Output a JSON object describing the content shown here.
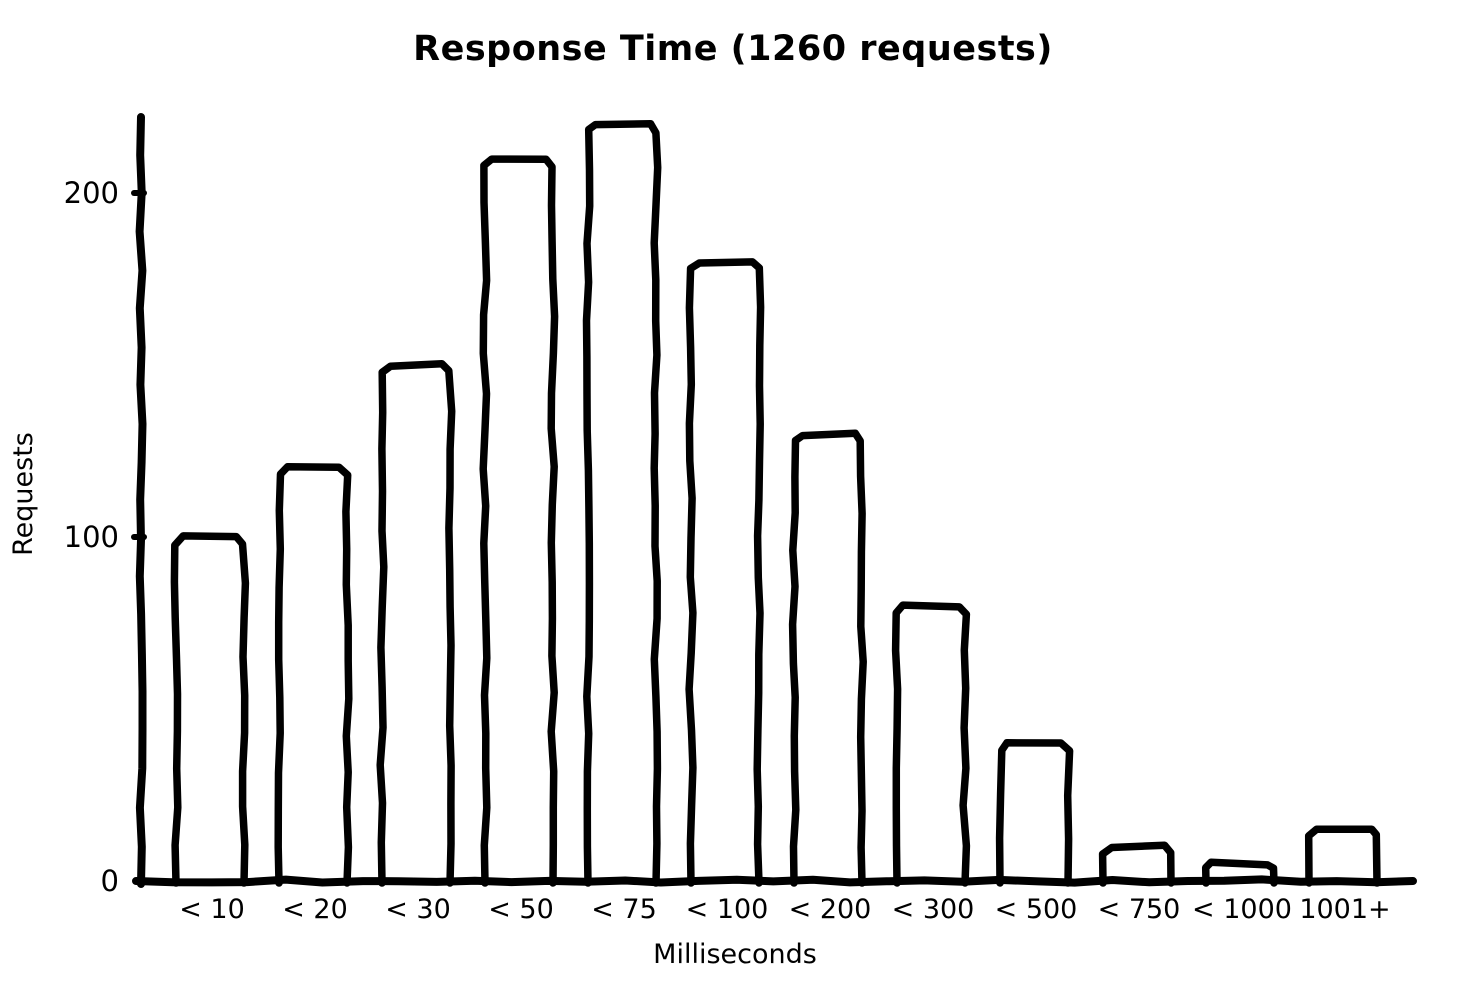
{
  "chart_data": {
    "type": "bar",
    "title": "Response Time (1260 requests)",
    "xlabel": "Milliseconds",
    "ylabel": "Requests",
    "categories": [
      "< 10",
      "< 20",
      "< 30",
      "< 50",
      "< 75",
      "< 100",
      "< 200",
      "< 300",
      "< 500",
      "< 750",
      "< 1000",
      "1001+"
    ],
    "values": [
      100,
      120,
      150,
      210,
      220,
      180,
      130,
      80,
      40,
      10,
      5,
      15
    ],
    "total_requests": 1260,
    "yticks": [
      0,
      100,
      200
    ],
    "ylim": [
      0,
      222
    ],
    "grid": false,
    "legend": "none",
    "style": {
      "stroke_color": "#000000",
      "bar_fill": "#ffffff",
      "background": "#ffffff",
      "hand_drawn": true
    }
  }
}
